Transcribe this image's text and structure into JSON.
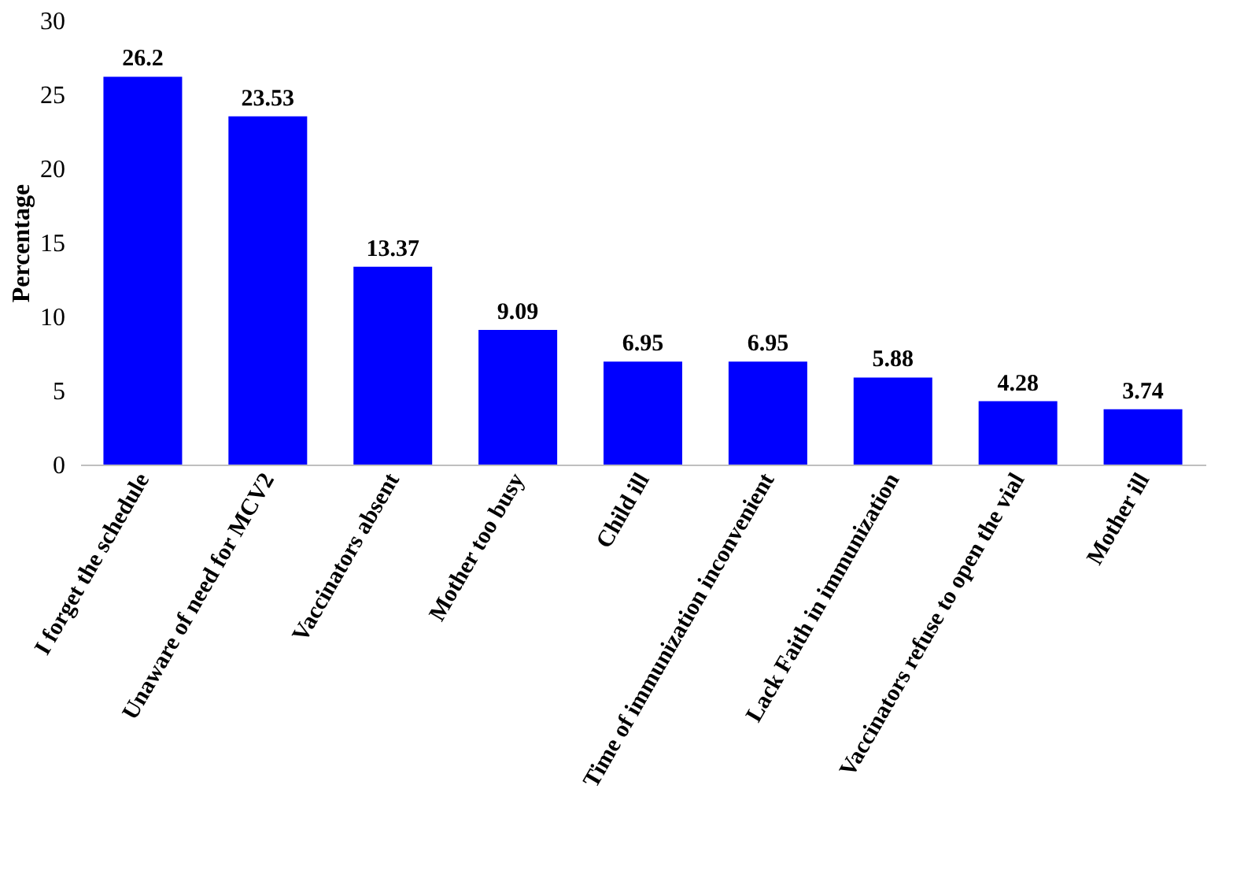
{
  "chart_data": {
    "type": "bar",
    "ylabel": "Percentage",
    "categories": [
      "I forget the schedule",
      "Unaware of need for MCV2",
      "Vaccinators absent",
      "Mother too busy",
      "Child ill",
      "Time of immunization inconvenient",
      "Lack Faith in immunization",
      "Vaccinators refuse to open the vial",
      "Mother ill"
    ],
    "values": [
      26.2,
      23.53,
      13.37,
      9.09,
      6.95,
      6.95,
      5.88,
      4.28,
      3.74
    ],
    "color": "#0000ff",
    "ylim": [
      0,
      30
    ],
    "yticks": [
      0,
      5,
      10,
      15,
      20,
      25,
      30
    ],
    "grid": false,
    "data_labels": true
  }
}
